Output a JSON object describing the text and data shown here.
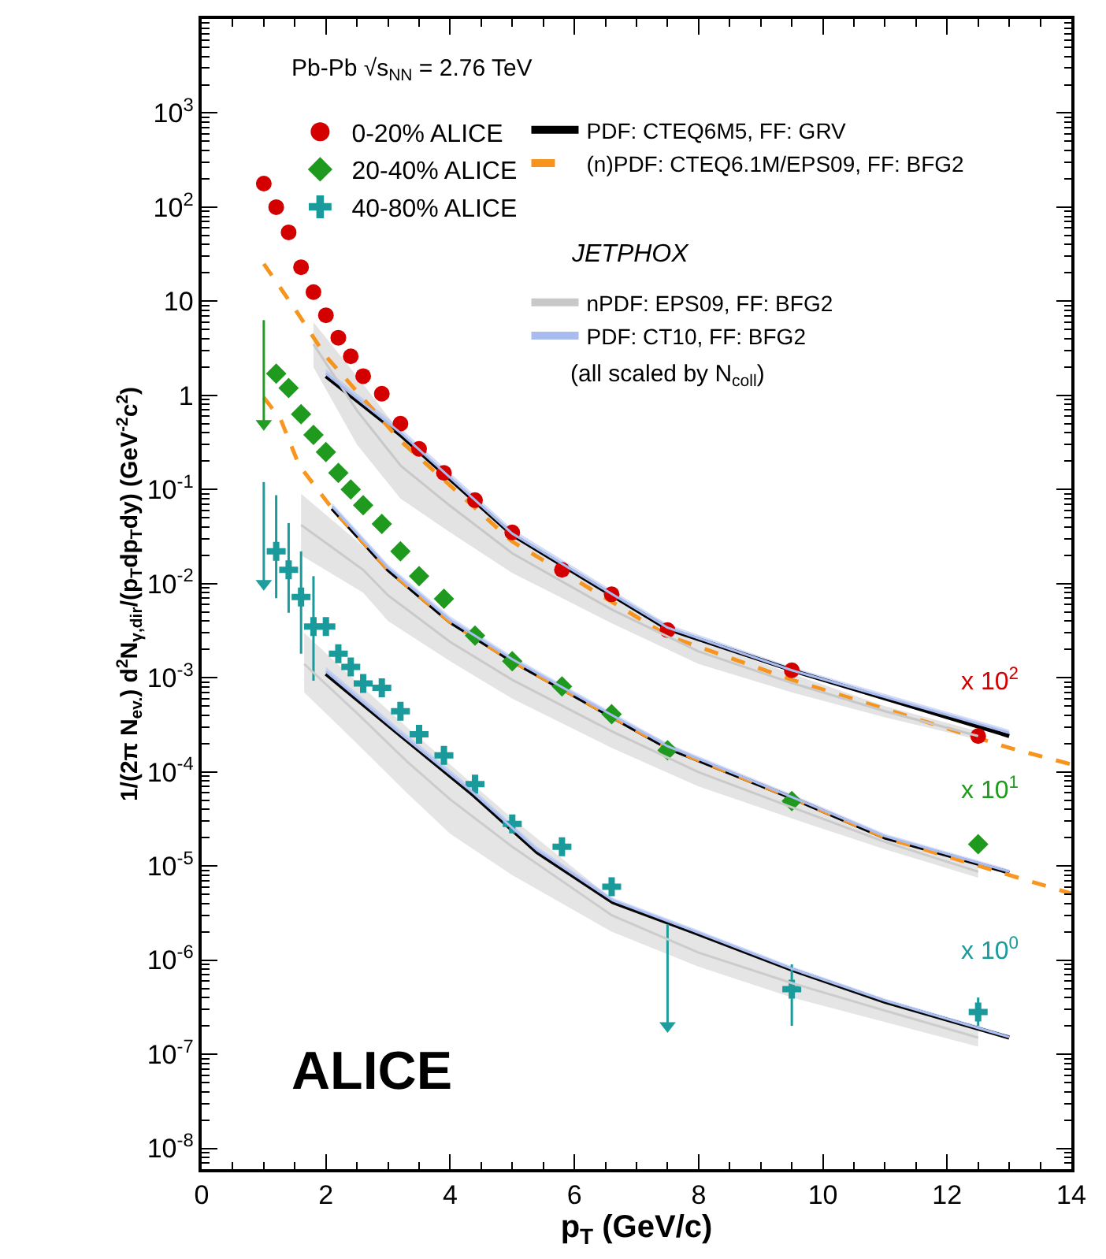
{
  "chart_data": {
    "type": "scatter",
    "xlabel": "p$_{T}$ (GeV/c)",
    "ylabel": "1/(2π N$_{ev.}$) d$^{2}$N$_{γ,dir}$/(p$_{T}$dp$_{T}$dy) (GeV$^{-2}$c$^{2}$)",
    "log": "y",
    "legend": "top",
    "xlim": [
      0,
      14
    ],
    "xticks": [
      0,
      2,
      4,
      6,
      8,
      10,
      12,
      14
    ],
    "ylim": [
      6e-09,
      10000
    ],
    "yticks": [
      {
        "value": 1e-08,
        "label": "10$^{-8}$"
      },
      {
        "value": 1e-07,
        "label": "10$^{-7}$"
      },
      {
        "value": 1e-06,
        "label": "10$^{-6}$"
      },
      {
        "value": 1e-05,
        "label": "10$^{-5}$"
      },
      {
        "value": 0.0001,
        "label": "10$^{-4}$"
      },
      {
        "value": 0.001,
        "label": "10$^{-3}$"
      },
      {
        "value": 0.01,
        "label": "10$^{-2}$"
      },
      {
        "value": 0.1,
        "label": "10$^{-1}$"
      },
      1,
      10,
      {
        "value": 100,
        "label": "10$^{2}$"
      },
      {
        "value": 1000,
        "label": "10$^{3}$"
      }
    ],
    "series": [
      {
        "type": "line",
        "name": "nPDF: EPS09, FF: BFG2",
        "color": "#c8c8c8",
        "x": [
          1.8,
          2.5,
          3.2,
          4,
          5,
          6.6,
          8,
          9.5,
          11,
          12.5
        ],
        "values": [
          3.5,
          0.69,
          0.18,
          0.067,
          0.021,
          0.0053,
          0.0019,
          0.00088,
          0.00044,
          0.00024
        ],
        "lower": [
          2,
          0.3,
          0.08,
          0.035,
          0.013,
          0.0038,
          0.0014,
          0.0007,
          0.00038,
          0.00022
        ],
        "upper": [
          6,
          1.6,
          0.4,
          0.13,
          0.035,
          0.0075,
          0.0025,
          0.0011,
          0.0005,
          0.00027
        ]
      },
      {
        "type": "line",
        "color": "#cacaca",
        "x": [
          1.6,
          2.6,
          3,
          4,
          5,
          6.6,
          8,
          9.5,
          11,
          12.5
        ],
        "values": [
          0.042,
          0.014,
          0.0075,
          0.0024,
          0.00095,
          0.00027,
          9.9e-05,
          4.2e-05,
          1.8e-05,
          8.7e-06
        ],
        "lower": [
          0.02,
          0.008,
          0.004,
          0.0015,
          0.0006,
          0.00018,
          7e-05,
          3.2e-05,
          1.5e-05,
          7.5e-06
        ],
        "upper": [
          0.09,
          0.025,
          0.014,
          0.004,
          0.0015,
          0.0004,
          0.00014,
          5.5e-05,
          2.1e-05,
          1e-05
        ]
      },
      {
        "type": "line",
        "color": "#cccccc",
        "x": [
          1.65,
          2.5,
          3.3,
          4,
          5,
          6.6,
          8,
          9.5,
          11,
          12.5
        ],
        "values": [
          0.0014,
          0.00042,
          0.00013,
          5.1e-05,
          1.6e-05,
          3e-06,
          1.2e-06,
          5.7e-07,
          2.9e-07,
          1.5e-07
        ],
        "lower": [
          0.0007,
          0.0002,
          6e-05,
          2.2e-05,
          8e-06,
          2e-06,
          8.5e-07,
          4e-07,
          2.2e-07,
          1.2e-07
        ],
        "upper": [
          0.003,
          0.0009,
          0.0003,
          0.00012,
          3.2e-05,
          4.5e-06,
          1.8e-06,
          8e-07,
          3.7e-07,
          2e-07
        ]
      },
      {
        "type": "line",
        "name": "PDF: CT10, FF: BFG2",
        "color": "#a9bcef",
        "x": [
          2,
          3.2,
          5,
          7.5,
          9.5,
          13
        ],
        "values": [
          1.7,
          0.4,
          0.034,
          0.0034,
          0.0012,
          0.00026
        ],
        "lower": [
          1.5,
          0.36,
          0.031,
          0.0031,
          0.00115,
          0.00025
        ],
        "upper": [
          1.9,
          0.45,
          0.038,
          0.0037,
          0.0013,
          0.00028
        ]
      },
      {
        "type": "line",
        "color": "#abbef1",
        "x": [
          2.1,
          3,
          4,
          5,
          7.5,
          9.5,
          11,
          13
        ],
        "values": [
          0.066,
          0.0147,
          0.0041,
          0.00157,
          0.000187,
          5.4e-05,
          2.07e-05,
          8.7e-06
        ],
        "lower": [
          0.06,
          0.0135,
          0.0037,
          0.00145,
          0.000175,
          5.1e-05,
          1.95e-05,
          8.3e-06
        ],
        "upper": [
          0.072,
          0.016,
          0.0045,
          0.0017,
          0.0002,
          5.8e-05,
          2.2e-05,
          9.2e-06
        ]
      },
      {
        "type": "line",
        "color": "#adc0f3",
        "x": [
          2,
          3.15,
          4.37,
          5.4,
          6.62,
          7.9,
          9.52,
          11,
          13
        ],
        "values": [
          0.00117,
          0.00027,
          6e-05,
          1.47e-05,
          4.3e-06,
          2.07e-06,
          8e-07,
          3.7e-07,
          1.52e-07
        ],
        "lower": [
          0.00105,
          0.00025,
          5.5e-05,
          1.35e-05,
          4e-06,
          1.95e-06,
          7.6e-07,
          3.5e-07,
          1.45e-07
        ],
        "upper": [
          0.0013,
          0.0003,
          6.6e-05,
          1.6e-05,
          4.6e-06,
          2.2e-06,
          8.5e-07,
          3.9e-07,
          1.6e-07
        ]
      },
      {
        "type": "line",
        "name": "PDF: CTEQ6M5, FF: GRV",
        "color": "#000000",
        "line_style": "solid",
        "x": [
          2,
          3.2,
          5,
          7.5,
          9.5,
          13
        ],
        "values": [
          1.6,
          0.38,
          0.033,
          0.0033,
          0.0012,
          0.00024
        ]
      },
      {
        "type": "line",
        "color": "#030303",
        "line_style": "solid",
        "x": [
          2.1,
          3,
          4,
          5,
          7.5,
          9.5,
          11,
          13
        ],
        "values": [
          0.063,
          0.014,
          0.0039,
          0.0015,
          0.00018,
          5.3e-05,
          2e-05,
          8.5e-06
        ]
      },
      {
        "type": "line",
        "color": "#060606",
        "line_style": "solid",
        "x": [
          2,
          3.15,
          4.37,
          5.4,
          6.62,
          7.9,
          9.52,
          11,
          13
        ],
        "values": [
          0.0011,
          0.00026,
          5.7e-05,
          1.4e-05,
          4.1e-06,
          2e-06,
          7.8e-07,
          3.6e-07,
          1.5e-07
        ]
      },
      {
        "type": "line",
        "name": "(n)PDF: CTEQ6.1M/EPS09, FF: BFG2",
        "color": "#f7941d",
        "line_style": "dashed",
        "x": [
          1,
          1.5,
          2,
          3.2,
          5,
          7.5,
          9.5,
          13,
          14
        ],
        "values": [
          25,
          8.3,
          2.6,
          0.33,
          0.028,
          0.0028,
          0.00095,
          0.00018,
          0.00012
        ]
      },
      {
        "type": "line",
        "color": "#f9961f",
        "line_style": "dashed",
        "x": [
          1,
          1.27,
          1.57,
          2.1,
          3,
          4,
          5,
          7.5,
          9.5,
          11,
          13,
          14
        ],
        "values": [
          0.95,
          0.56,
          0.18,
          0.063,
          0.014,
          0.0039,
          0.0015,
          0.00018,
          5.3e-05,
          2e-05,
          8e-06,
          5.1e-06
        ]
      },
      {
        "name": "0-20% ALICE",
        "color": "#d40000",
        "marker": "circle",
        "x": [
          1,
          1.2,
          1.4,
          1.6,
          1.8,
          2,
          2.2,
          2.4,
          2.6,
          2.9,
          3.2,
          3.5,
          3.9,
          4.4,
          5,
          5.8,
          6.6,
          7.5,
          9.5,
          12.5
        ],
        "values": [
          178,
          100,
          54,
          23,
          12.5,
          7.1,
          4.1,
          2.6,
          1.6,
          1.04,
          0.5,
          0.27,
          0.15,
          0.077,
          0.035,
          0.014,
          0.0077,
          0.0032,
          0.0012,
          0.00024
        ]
      },
      {
        "name": "20-40% ALICE",
        "color": "#1f9a1f",
        "marker": "diamond",
        "x": [
          1.2,
          1.4,
          1.6,
          1.8,
          2,
          2.2,
          2.4,
          2.6,
          2.9,
          3.2,
          3.5,
          3.9,
          4.4,
          5,
          5.8,
          6.6,
          7.5,
          9.5,
          12.5
        ],
        "values": [
          1.7,
          1.2,
          0.63,
          0.38,
          0.25,
          0.15,
          0.1,
          0.068,
          0.043,
          0.022,
          0.012,
          0.0069,
          0.0028,
          0.0015,
          0.00081,
          0.00041,
          0.00017,
          4.9e-05,
          1.7e-05
        ]
      },
      {
        "name": "40-80% ALICE",
        "color": "#1a9a9a",
        "marker": "cross",
        "x": [
          1.2,
          1.4,
          1.6,
          1.8,
          2,
          2.2,
          2.4,
          2.6,
          2.9,
          3.2,
          3.5,
          3.9,
          4.4,
          5,
          5.8,
          6.6,
          9.5,
          12.5
        ],
        "values": [
          0.022,
          0.014,
          0.0072,
          0.0035,
          0.0035,
          0.0018,
          0.0013,
          0.00087,
          0.00078,
          0.00044,
          0.00025,
          0.00015,
          7.4e-05,
          2.8e-05,
          1.6e-05,
          6e-06,
          4.9e-07,
          2.8e-07
        ],
        "errors": [
          [
            0.007,
            0.087
          ],
          [
            0.0049,
            0.044
          ],
          [
            0.0018,
            0.022
          ],
          [
            0.00093,
            0.012
          ],
          null,
          null,
          null,
          null,
          null,
          null,
          null,
          null,
          null,
          null,
          null,
          null,
          [
            2e-07,
            9e-07
          ],
          [
            2e-07,
            4e-07
          ]
        ]
      },
      {
        "color": "#229d22",
        "marker": "triangle",
        "x": [
          1
        ],
        "values": [
          0.5
        ],
        "errors": [
          [
            0.5,
            6.3
          ]
        ]
      },
      {
        "color": "#1d9d9d",
        "marker": "triangle",
        "x": [
          1,
          7.5
        ],
        "values": [
          0.01,
          2e-07
        ],
        "errors": [
          [
            0.01,
            0.12
          ],
          [
            2e-07,
            2.4e-06
          ]
        ]
      }
    ],
    "annotations": [
      "Pb-Pb √s$_{NN}$ = 2.76 TeV",
      "JETPHOX",
      "(all scaled by N$_{coll}$)",
      "ALICE",
      "x 10$^{2}$",
      "x 10$^{1}$",
      "x 10$^{0}$"
    ]
  }
}
